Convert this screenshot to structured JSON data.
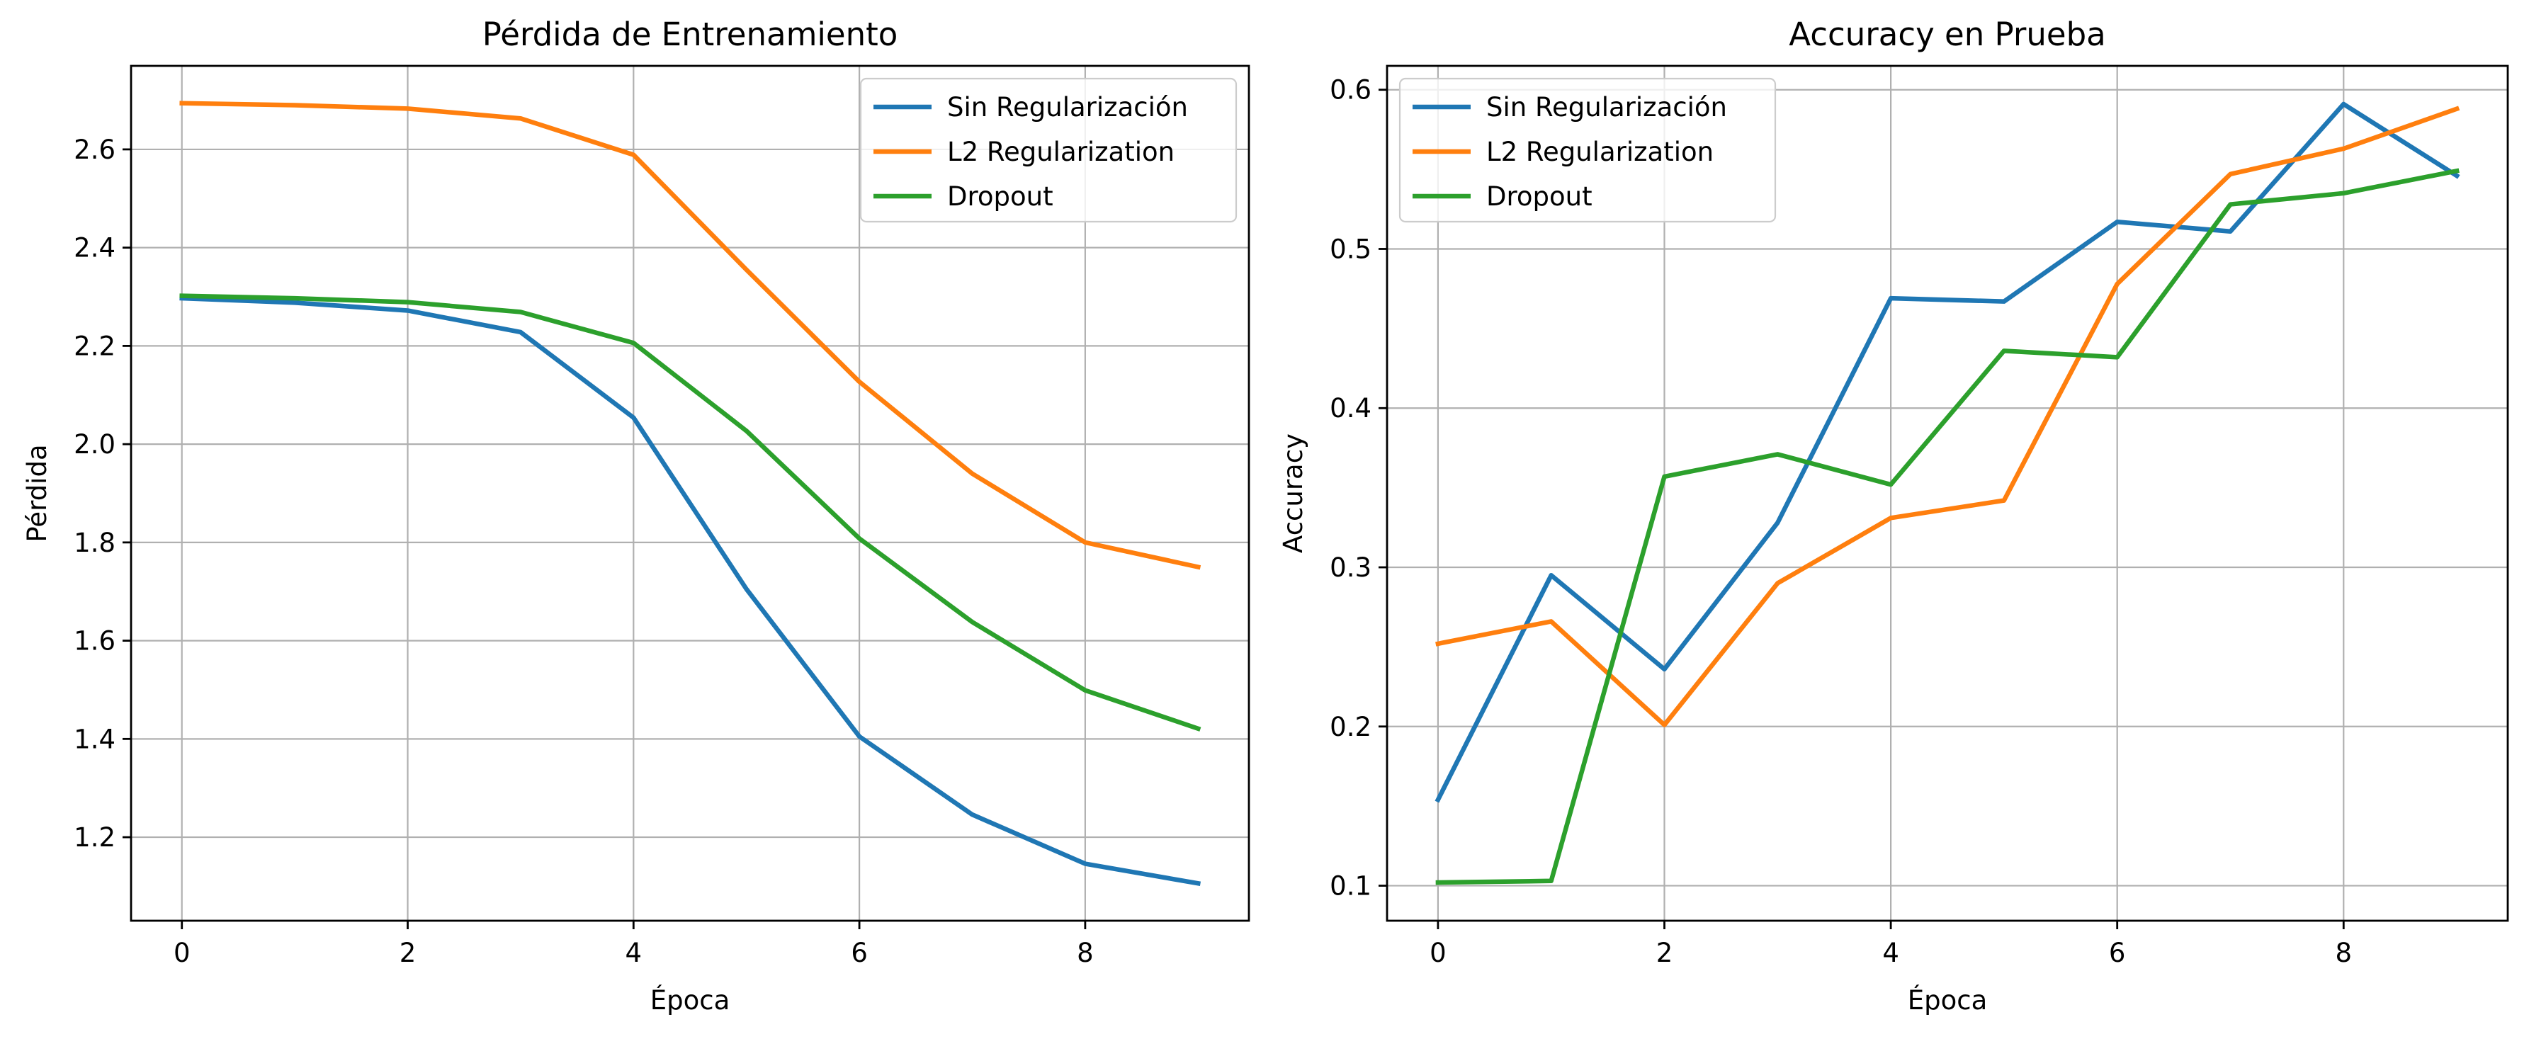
{
  "chart_data": [
    {
      "type": "line",
      "title": "Pérdida de Entrenamiento",
      "xlabel": "Época",
      "ylabel": "Pérdida",
      "x": [
        0,
        1,
        2,
        3,
        4,
        5,
        6,
        7,
        8,
        9
      ],
      "xlim": [
        -0.45,
        9.45
      ],
      "ylim": [
        1.03,
        2.77
      ],
      "xticks": [
        0,
        2,
        4,
        6,
        8
      ],
      "yticks": [
        1.2,
        1.4,
        1.6,
        1.8,
        2.0,
        2.2,
        2.4,
        2.6
      ],
      "ytick_decimals": 1,
      "grid": true,
      "legend_position": "top-right",
      "series": [
        {
          "name": "Sin Regularización",
          "color": "#1f77b4",
          "values": [
            2.297,
            2.288,
            2.272,
            2.228,
            2.054,
            1.705,
            1.405,
            1.246,
            1.146,
            1.106
          ]
        },
        {
          "name": "L2 Regularization",
          "color": "#ff7f0e",
          "values": [
            2.694,
            2.69,
            2.683,
            2.663,
            2.589,
            2.355,
            2.127,
            1.94,
            1.8,
            1.75
          ]
        },
        {
          "name": "Dropout",
          "color": "#2ca02c",
          "values": [
            2.302,
            2.297,
            2.289,
            2.269,
            2.206,
            2.027,
            1.808,
            1.638,
            1.499,
            1.421
          ]
        }
      ]
    },
    {
      "type": "line",
      "title": "Accuracy en Prueba",
      "xlabel": "Época",
      "ylabel": "Accuracy",
      "x": [
        0,
        1,
        2,
        3,
        4,
        5,
        6,
        7,
        8,
        9
      ],
      "xlim": [
        -0.45,
        9.45
      ],
      "ylim": [
        0.078,
        0.615
      ],
      "xticks": [
        0,
        2,
        4,
        6,
        8
      ],
      "yticks": [
        0.1,
        0.2,
        0.3,
        0.4,
        0.5,
        0.6
      ],
      "ytick_decimals": 1,
      "grid": true,
      "legend_position": "top-left",
      "series": [
        {
          "name": "Sin Regularización",
          "color": "#1f77b4",
          "values": [
            0.154,
            0.295,
            0.236,
            0.328,
            0.469,
            0.467,
            0.517,
            0.511,
            0.591,
            0.546
          ]
        },
        {
          "name": "L2 Regularization",
          "color": "#ff7f0e",
          "values": [
            0.252,
            0.266,
            0.201,
            0.29,
            0.331,
            0.342,
            0.478,
            0.547,
            0.563,
            0.588
          ]
        },
        {
          "name": "Dropout",
          "color": "#2ca02c",
          "values": [
            0.102,
            0.103,
            0.357,
            0.371,
            0.352,
            0.436,
            0.432,
            0.528,
            0.535,
            0.549
          ]
        }
      ]
    }
  ]
}
